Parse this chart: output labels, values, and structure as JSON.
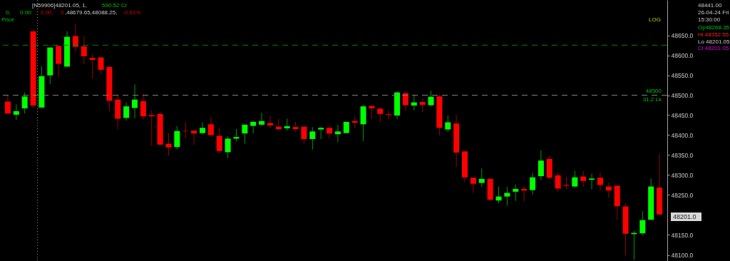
{
  "chart_data": {
    "type": "candlestick",
    "categories": [
      null,
      null,
      null,
      null,
      null,
      null,
      null,
      null,
      null,
      null,
      null,
      null,
      null,
      null,
      null,
      null,
      null,
      null,
      null,
      null,
      null,
      null,
      null,
      null,
      null,
      null,
      null,
      null,
      null,
      null,
      null,
      null,
      null,
      null,
      null,
      null,
      null,
      null,
      null,
      null,
      null,
      null,
      null,
      null,
      null,
      null,
      null,
      null,
      null,
      null,
      null,
      null,
      null,
      null,
      null,
      null,
      null,
      null,
      null,
      null,
      null,
      null,
      null,
      null,
      null,
      null,
      null,
      null,
      null,
      null,
      null,
      null,
      null,
      null,
      null,
      null,
      null,
      null
    ],
    "ohlc": [
      [
        48484,
        48499,
        48453,
        48454
      ],
      [
        48451,
        48477,
        48438,
        48460
      ],
      [
        48467,
        48507,
        48454,
        48497
      ],
      [
        48661,
        48664,
        48469,
        48474
      ],
      [
        48469,
        48573,
        48469,
        48548
      ],
      [
        48550,
        48621,
        48528,
        48620
      ],
      [
        48624,
        48624,
        48546,
        48579
      ],
      [
        48572,
        48661,
        48572,
        48647
      ],
      [
        48649,
        48680,
        48610,
        48622
      ],
      [
        48623,
        48648,
        48578,
        48598
      ],
      [
        48594,
        48603,
        48542,
        48589
      ],
      [
        48595,
        48598,
        48553,
        48564
      ],
      [
        48571,
        48574,
        48460,
        48486
      ],
      [
        48489,
        48503,
        48414,
        48441
      ],
      [
        48443,
        48482,
        48436,
        48472
      ],
      [
        48468,
        48527,
        48442,
        48489
      ],
      [
        48485,
        48503,
        48439,
        48447
      ],
      [
        48450,
        48462,
        48373,
        48447
      ],
      [
        48453,
        48457,
        48375,
        48376
      ],
      [
        48378,
        48405,
        48348,
        48369
      ],
      [
        48370,
        48422,
        48364,
        48410
      ],
      [
        48411,
        48433,
        48392,
        48410
      ],
      [
        48411,
        48411,
        48375,
        48404
      ],
      [
        48405,
        48432,
        48402,
        48418
      ],
      [
        48427,
        48446,
        48397,
        48400
      ],
      [
        48398,
        48419,
        48355,
        48360
      ],
      [
        48357,
        48397,
        48342,
        48391
      ],
      [
        48391,
        48415,
        48384,
        48395
      ],
      [
        48404,
        48426,
        48378,
        48426
      ],
      [
        48423,
        48435,
        48404,
        48433
      ],
      [
        48426,
        48456,
        48423,
        48435
      ],
      [
        48430,
        48449,
        48417,
        48424
      ],
      [
        48421,
        48441,
        48411,
        48415
      ],
      [
        48417,
        48441,
        48411,
        48422
      ],
      [
        48420,
        48433,
        48408,
        48415
      ],
      [
        48421,
        48421,
        48378,
        48390
      ],
      [
        48390,
        48420,
        48364,
        48409
      ],
      [
        48414,
        48420,
        48390,
        48418
      ],
      [
        48418,
        48425,
        48392,
        48404
      ],
      [
        48402,
        48425,
        48382,
        48409
      ],
      [
        48405,
        48433,
        48405,
        48433
      ],
      [
        48435,
        48447,
        48417,
        48431
      ],
      [
        48427,
        48476,
        48385,
        48472
      ],
      [
        48473,
        48473,
        48440,
        48467
      ],
      [
        48466,
        48470,
        48432,
        48453
      ],
      [
        48452,
        48462,
        48439,
        48450
      ],
      [
        48449,
        48510,
        48440,
        48507
      ],
      [
        48505,
        48510,
        48462,
        48475
      ],
      [
        48474,
        48501,
        48462,
        48482
      ],
      [
        48483,
        48492,
        48457,
        48476
      ],
      [
        48475,
        48511,
        48472,
        48496
      ],
      [
        48497,
        48502,
        48399,
        48418
      ],
      [
        48414,
        48449,
        48408,
        48432
      ],
      [
        48429,
        48450,
        48321,
        48356
      ],
      [
        48359,
        48359,
        48282,
        48294
      ],
      [
        48293,
        48293,
        48255,
        48278
      ],
      [
        48280,
        48316,
        48270,
        48290
      ],
      [
        48290,
        48291,
        48234,
        48238
      ],
      [
        48236,
        48271,
        48229,
        48246
      ],
      [
        48246,
        48270,
        48223,
        48255
      ],
      [
        48258,
        48276,
        48235,
        48265
      ],
      [
        48265,
        48273,
        48234,
        48261
      ],
      [
        48262,
        48305,
        48251,
        48294
      ],
      [
        48297,
        48362,
        48287,
        48336
      ],
      [
        48340,
        48348,
        48289,
        48293
      ],
      [
        48299,
        48306,
        48258,
        48266
      ],
      [
        48275,
        48295,
        48264,
        48273
      ],
      [
        48271,
        48310,
        48268,
        48294
      ],
      [
        48296,
        48309,
        48270,
        48285
      ],
      [
        48288,
        48303,
        48264,
        48291
      ],
      [
        48293,
        48306,
        48261,
        48275
      ],
      [
        48271,
        48281,
        48243,
        48261
      ],
      [
        48273,
        48273,
        48188,
        48222
      ],
      [
        48221,
        48229,
        48099,
        48153
      ],
      [
        48152,
        48160,
        48088.25,
        48155
      ],
      [
        48154,
        48209,
        48149,
        48187
      ],
      [
        48188,
        48291,
        48188,
        48271
      ],
      [
        48268.35,
        48352.55,
        48201.05,
        48201.05
      ]
    ],
    "colors": [
      "#ff0000",
      "#00ff00",
      "#00ff00",
      "#ff0000",
      "#00ff00",
      "#00ff00",
      "#ff0000",
      "#00ff00",
      "#ff0000",
      "#ff0000",
      "#ff0000",
      "#ff0000",
      "#ff0000",
      "#ff0000",
      "#00ff00",
      "#00ff00",
      "#ff0000",
      "#ff0000",
      "#ff0000",
      "#ff0000",
      "#00ff00",
      "#ff0000",
      "#ff0000",
      "#00ff00",
      "#ff0000",
      "#ff0000",
      "#00ff00",
      "#00ff00",
      "#00ff00",
      "#00ff00",
      "#00ff00",
      "#ff0000",
      "#ff0000",
      "#00ff00",
      "#ff0000",
      "#ff0000",
      "#00ff00",
      "#00ff00",
      "#ff0000",
      "#00ff00",
      "#00ff00",
      "#ff0000",
      "#00ff00",
      "#ff0000",
      "#ff0000",
      "#ff0000",
      "#00ff00",
      "#ff0000",
      "#00ff00",
      "#ff0000",
      "#00ff00",
      "#ff0000",
      "#00ff00",
      "#ff0000",
      "#ff0000",
      "#ff0000",
      "#00ff00",
      "#ff0000",
      "#00ff00",
      "#00ff00",
      "#00ff00",
      "#ff0000",
      "#00ff00",
      "#00ff00",
      "#ff0000",
      "#ff0000",
      "#ff0000",
      "#00ff00",
      "#ff0000",
      "#00ff00",
      "#ff0000",
      "#ff0000",
      "#ff0000",
      "#ff0000",
      "#00ff00",
      "#00ff00",
      "#00ff00",
      "#ff0000"
    ],
    "log": true,
    "ylim": [
      48085,
      48740
    ],
    "yticks": [
      {
        "value": 48100,
        "label": "48100.0"
      },
      {
        "value": 48150,
        "label": "48150.0"
      },
      {
        "value": 48250,
        "label": "48250.0"
      },
      {
        "value": 48300,
        "label": "48300.0"
      },
      {
        "value": 48350,
        "label": "48350.0"
      },
      {
        "value": 48400,
        "label": "48400.0"
      },
      {
        "value": 48450,
        "label": "48450.0"
      },
      {
        "value": 48500,
        "label": "48500.0"
      },
      {
        "value": 48550,
        "label": "48550.0"
      },
      {
        "value": 48600,
        "label": "48600.0"
      },
      {
        "value": 48650,
        "label": "48650.0"
      }
    ],
    "ref_lines": [
      {
        "axis": "y",
        "value": 48500,
        "label": "48500",
        "color": "#808080",
        "line_style": "dashed"
      },
      {
        "axis": "y",
        "value": 48626,
        "color": "#008000",
        "line_style": "dashed"
      }
    ],
    "annotations": [
      "[N59906]48201.05,   1,",
      "590.52   Cr",
      "0,",
      "0.00:",
      "0.00,",
      "0",
      ",48679.65,48088.25,",
      "-0.61%",
      "Price",
      "LOG",
      "48441.00",
      "26-04-24 Fri",
      "15:30:00",
      "Op48268.35",
      "Hi 48352.55",
      "Lo 48201.05",
      "Cl 48201.05",
      {
        "text": "31.2 Lk",
        "y": 48500
      },
      "48201.0"
    ],
    "grid": false
  }
}
